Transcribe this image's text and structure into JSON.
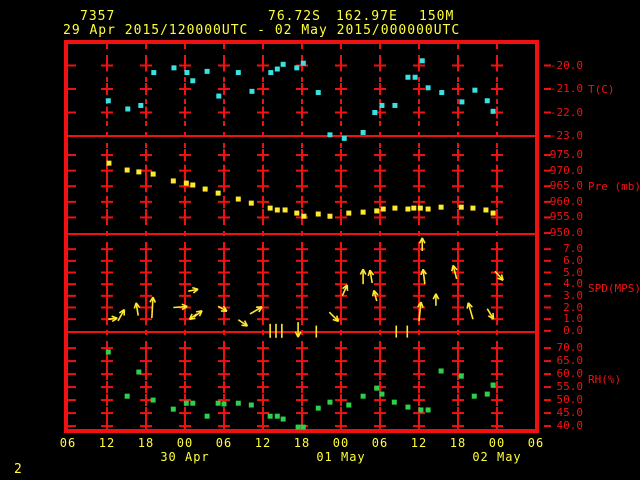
{
  "header": {
    "station_id": "7357",
    "latitude": "76.72S",
    "longitude": "162.97E",
    "elevation": "150M",
    "period": "29 Apr 2015/120000UTC - 02 May 2015/000000UTC"
  },
  "footer": {
    "page_number": "2"
  },
  "colors": {
    "background": "#000000",
    "axis": "#f01212",
    "header_text": "#ffff3b",
    "temperature": "#3be0e0",
    "pressure": "#ffe82e",
    "wind": "#ffe82e",
    "humidity": "#2ed04b"
  },
  "x_axis": {
    "hours_total": 72,
    "tick_interval_hours": 6,
    "hour_labels": [
      "06",
      "12",
      "18",
      "00",
      "06",
      "12",
      "18",
      "00",
      "06",
      "12",
      "18",
      "00",
      "06"
    ],
    "date_labels": [
      {
        "text": "30 Apr",
        "tick_index": 3
      },
      {
        "text": "01 May",
        "tick_index": 7
      },
      {
        "text": "02 May",
        "tick_index": 11
      }
    ]
  },
  "chart_data": [
    {
      "type": "scatter",
      "name": "temperature",
      "unit_label": "T(C)",
      "color_key": "temperature",
      "y_ticks": [
        "-20.0",
        "-21.0",
        "-22.0",
        "-23.0"
      ],
      "y_tick_values": [
        -20,
        -21,
        -22,
        -23
      ],
      "y_top": -19.0,
      "y_bottom": -23.0,
      "unit_label_row": 1,
      "points": [
        [
          6.2,
          -21.5
        ],
        [
          9.2,
          -21.85
        ],
        [
          11.2,
          -21.7
        ],
        [
          13.2,
          -20.3
        ],
        [
          16.3,
          -20.1
        ],
        [
          18.3,
          -20.3
        ],
        [
          19.2,
          -20.65
        ],
        [
          21.4,
          -20.25
        ],
        [
          23.2,
          -21.3
        ],
        [
          26.2,
          -20.3
        ],
        [
          28.3,
          -21.1
        ],
        [
          31.2,
          -20.3
        ],
        [
          32.2,
          -20.15
        ],
        [
          33.1,
          -19.95
        ],
        [
          35.2,
          -20.1
        ],
        [
          36.2,
          -19.9
        ],
        [
          38.5,
          -21.15
        ],
        [
          40.3,
          -22.95
        ],
        [
          42.5,
          -23.1
        ],
        [
          45.4,
          -22.85
        ],
        [
          47.2,
          -22.0
        ],
        [
          48.3,
          -21.7
        ],
        [
          50.3,
          -21.7
        ],
        [
          52.3,
          -20.5
        ],
        [
          53.4,
          -20.5
        ],
        [
          54.5,
          -19.8
        ],
        [
          55.4,
          -20.95
        ],
        [
          57.5,
          -21.15
        ],
        [
          60.6,
          -21.55
        ],
        [
          62.6,
          -21.05
        ],
        [
          64.5,
          -21.5
        ],
        [
          65.4,
          -21.95
        ]
      ]
    },
    {
      "type": "scatter",
      "name": "pressure",
      "unit_label": "Pre (mb)",
      "color_key": "pressure",
      "y_ticks": [
        "975.0",
        "970.0",
        "965.0",
        "960.0",
        "955.0",
        "950.0"
      ],
      "y_tick_values": [
        975,
        970,
        965,
        960,
        955,
        950
      ],
      "y_top": 981.1,
      "y_bottom": 949.7,
      "unit_label_row": 2,
      "points": [
        [
          6.3,
          972.4
        ],
        [
          9.1,
          970.2
        ],
        [
          10.9,
          969.6
        ],
        [
          13.1,
          968.9
        ],
        [
          16.2,
          966.7
        ],
        [
          18.2,
          966.0
        ],
        [
          19.2,
          965.4
        ],
        [
          21.1,
          964.1
        ],
        [
          23.1,
          962.8
        ],
        [
          26.2,
          960.9
        ],
        [
          28.2,
          959.6
        ],
        [
          31.1,
          958.0
        ],
        [
          32.2,
          957.4
        ],
        [
          33.4,
          957.4
        ],
        [
          35.2,
          956.4
        ],
        [
          36.3,
          955.4
        ],
        [
          38.5,
          956.1
        ],
        [
          40.3,
          955.4
        ],
        [
          43.2,
          956.4
        ],
        [
          45.4,
          956.7
        ],
        [
          47.5,
          957.1
        ],
        [
          48.5,
          957.7
        ],
        [
          50.3,
          958.0
        ],
        [
          52.3,
          957.7
        ],
        [
          53.2,
          958.0
        ],
        [
          54.2,
          958.0
        ],
        [
          55.4,
          957.7
        ],
        [
          57.4,
          958.3
        ],
        [
          60.5,
          958.3
        ],
        [
          62.3,
          958.0
        ],
        [
          64.3,
          957.4
        ],
        [
          65.4,
          956.4
        ]
      ]
    },
    {
      "type": "vector",
      "name": "wind-speed",
      "unit_label": "SPD(MPS)",
      "color_key": "wind",
      "y_ticks": [
        "7.0",
        "6.0",
        "5.0",
        "4.0",
        "3.0",
        "2.0",
        "1.0",
        "0.0"
      ],
      "y_tick_values": [
        7,
        6,
        5,
        4,
        3,
        2,
        1,
        0
      ],
      "y_top": 8.3,
      "y_bottom": -0.1,
      "unit_label_row": 3,
      "arrows": [
        [
          6.2,
          1.0,
          6,
          9,
          1
        ],
        [
          7.7,
          0.85,
          61,
          13,
          1
        ],
        [
          10.8,
          1.3,
          99,
          13,
          1
        ],
        [
          12.9,
          1.1,
          87,
          21,
          1
        ],
        [
          16.2,
          2.0,
          4,
          14,
          1
        ],
        [
          18.5,
          3.4,
          11,
          10,
          1
        ],
        [
          19.4,
          1.2,
          37,
          10,
          1
        ],
        [
          19.8,
          1.45,
          217,
          9,
          1
        ],
        [
          23.1,
          2.1,
          -29,
          10,
          1
        ],
        [
          26.2,
          0.95,
          -34,
          11,
          1
        ],
        [
          28.0,
          1.45,
          30,
          14,
          1
        ],
        [
          31.1,
          0.6,
          270,
          14,
          0
        ],
        [
          32.0,
          0.6,
          270,
          14,
          0
        ],
        [
          32.9,
          0.6,
          270,
          14,
          0
        ],
        [
          35.4,
          0.75,
          270,
          15,
          1
        ],
        [
          38.2,
          0.45,
          270,
          12,
          0
        ],
        [
          40.2,
          1.6,
          -45,
          13,
          1
        ],
        [
          42.2,
          3.0,
          66,
          12,
          1
        ],
        [
          45.4,
          4.0,
          90,
          15,
          1
        ],
        [
          46.8,
          4.1,
          100,
          13,
          1
        ],
        [
          47.5,
          2.55,
          105,
          11,
          1
        ],
        [
          50.5,
          0.45,
          270,
          12,
          0
        ],
        [
          52.2,
          0.45,
          270,
          12,
          0
        ],
        [
          54.0,
          0.85,
          84,
          19,
          1
        ],
        [
          54.5,
          6.85,
          90,
          13,
          1
        ],
        [
          54.9,
          4.0,
          97,
          15,
          1
        ],
        [
          56.6,
          2.15,
          90,
          12,
          1
        ],
        [
          59.8,
          4.45,
          105,
          14,
          1
        ],
        [
          62.3,
          1.0,
          106,
          17,
          1
        ],
        [
          64.5,
          1.9,
          -59,
          12,
          1
        ],
        [
          65.7,
          5.1,
          -48,
          12,
          1
        ]
      ]
    },
    {
      "type": "scatter",
      "name": "relative-humidity",
      "unit_label": "RH(%)",
      "color_key": "humidity",
      "y_ticks": [
        "70.0",
        "65.0",
        "60.0",
        "55.0",
        "50.0",
        "45.0",
        "40.0"
      ],
      "y_tick_values": [
        70,
        65,
        60,
        55,
        50,
        45,
        40
      ],
      "y_top": 76.2,
      "y_bottom": 38.1,
      "unit_label_row": 4,
      "points": [
        [
          6.2,
          68.5
        ],
        [
          9.1,
          51.5
        ],
        [
          10.9,
          60.8
        ],
        [
          13.1,
          50.0
        ],
        [
          16.2,
          46.5
        ],
        [
          18.2,
          48.8
        ],
        [
          19.2,
          48.8
        ],
        [
          21.4,
          43.8
        ],
        [
          23.1,
          48.8
        ],
        [
          24.0,
          48.5
        ],
        [
          26.2,
          48.8
        ],
        [
          28.2,
          48.1
        ],
        [
          31.1,
          43.8
        ],
        [
          32.2,
          43.8
        ],
        [
          33.1,
          42.7
        ],
        [
          35.4,
          39.6
        ],
        [
          36.2,
          39.6
        ],
        [
          38.5,
          46.9
        ],
        [
          40.3,
          49.2
        ],
        [
          43.2,
          48.1
        ],
        [
          45.4,
          51.5
        ],
        [
          47.5,
          54.6
        ],
        [
          48.3,
          52.3
        ],
        [
          50.2,
          49.2
        ],
        [
          52.3,
          47.3
        ],
        [
          54.3,
          46.2
        ],
        [
          55.4,
          46.2
        ],
        [
          57.4,
          61.2
        ],
        [
          60.5,
          59.2
        ],
        [
          62.5,
          51.5
        ],
        [
          64.5,
          52.3
        ],
        [
          65.4,
          55.8
        ]
      ]
    }
  ]
}
